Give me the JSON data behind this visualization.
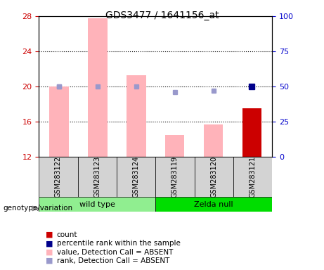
{
  "title": "GDS3477 / 1641156_at",
  "samples": [
    "GSM283122",
    "GSM283123",
    "GSM283124",
    "GSM283119",
    "GSM283120",
    "GSM283121"
  ],
  "groups": [
    "wild type",
    "wild type",
    "wild type",
    "Zelda null",
    "Zelda null",
    "Zelda null"
  ],
  "group_names": [
    "wild type",
    "Zelda null"
  ],
  "group_colors": [
    "#90ee90",
    "#00cc00"
  ],
  "ylim_left": [
    12,
    28
  ],
  "ylim_right": [
    0,
    100
  ],
  "yticks_left": [
    12,
    16,
    20,
    24,
    28
  ],
  "yticks_right": [
    0,
    25,
    50,
    75,
    100
  ],
  "bar_values": [
    20.0,
    27.8,
    21.3,
    14.5,
    15.7,
    17.5
  ],
  "bar_colors_absent": [
    "#ffb3ba",
    "#ffb3ba",
    "#ffb3ba",
    "#ffb3ba",
    "#ffb3ba",
    null
  ],
  "bar_color_count": "#cc0000",
  "rank_dots": [
    null,
    20.4,
    20.1,
    19.4,
    19.5,
    null
  ],
  "rank_dot_colors_absent": [
    "#b0b0e0",
    "#b0b0e0",
    "#b0b0e0",
    "#b0b0e0",
    "#b0b0e0",
    null
  ],
  "percentile_dots": [
    19.9,
    null,
    null,
    null,
    null,
    20.1
  ],
  "percentile_dot_colors": [
    null,
    null,
    null,
    null,
    null,
    "#00008b"
  ],
  "dotted_lines": [
    16,
    20,
    24
  ],
  "xlabel_color_left": "#cc0000",
  "xlabel_color_right": "#0000cc",
  "label_count": "count",
  "label_percentile": "percentile rank within the sample",
  "label_value_absent": "value, Detection Call = ABSENT",
  "label_rank_absent": "rank, Detection Call = ABSENT",
  "fig_width": 4.61,
  "fig_height": 3.84,
  "dpi": 100
}
